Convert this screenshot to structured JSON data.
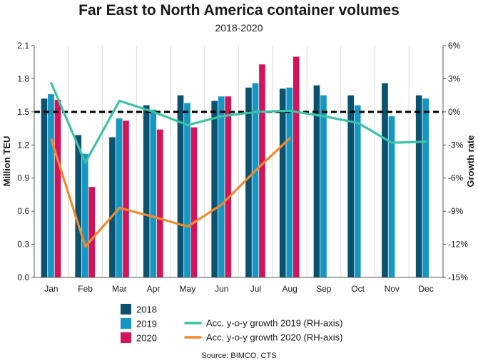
{
  "chart_data": {
    "type": "bar",
    "title": "Far East to North America container volumes",
    "subtitle": "2018-2020",
    "source": "Source: BIMCO, CTS",
    "categories": [
      "Jan",
      "Feb",
      "Mar",
      "Apr",
      "May",
      "Jun",
      "Jul",
      "Aug",
      "Sep",
      "Oct",
      "Nov",
      "Dec"
    ],
    "ylabel": "Million TEU",
    "y2label": "Growth rate",
    "ylim": [
      0,
      2.1
    ],
    "yticks": [
      "0.0",
      "0.3",
      "0.6",
      "0.9",
      "1.2",
      "1.5",
      "1.8",
      "2.1"
    ],
    "y2lim": [
      -15,
      6
    ],
    "y2ticks": [
      "-15%",
      "-12%",
      "-9%",
      "-6%",
      "-3%",
      "0%",
      "3%",
      "6%"
    ],
    "reference_line": {
      "axis": "y2",
      "value": 0,
      "style": "dashed"
    },
    "grid": "vertical",
    "legend_placement": "bottom",
    "series": [
      {
        "name": "2018",
        "kind": "bar",
        "color": "#0b5270",
        "values": [
          1.62,
          1.29,
          1.27,
          1.56,
          1.65,
          1.6,
          1.72,
          1.71,
          1.74,
          1.65,
          1.76,
          1.65
        ]
      },
      {
        "name": "2019",
        "kind": "bar",
        "color": "#1597c4",
        "values": [
          1.66,
          1.12,
          1.44,
          1.52,
          1.58,
          1.64,
          1.76,
          1.72,
          1.65,
          1.56,
          1.46,
          1.62
        ]
      },
      {
        "name": "2020",
        "kind": "bar",
        "color": "#d4145a",
        "values": [
          1.61,
          0.82,
          1.42,
          1.34,
          1.36,
          1.64,
          1.93,
          2.0,
          null,
          null,
          null,
          null
        ]
      },
      {
        "name": "Acc. y-o-y growth 2019 (RH-axis)",
        "kind": "line",
        "axis": "y2",
        "color": "#3cc3a6",
        "values": [
          2.6,
          -4.6,
          1.0,
          0.0,
          -1.2,
          -0.4,
          0.0,
          0.1,
          -0.4,
          -1.0,
          -2.8,
          -2.7
        ]
      },
      {
        "name": "Acc. y-o-y growth 2020 (RH-axis)",
        "kind": "line",
        "axis": "y2",
        "color": "#f08a2c",
        "values": [
          -2.5,
          -12.2,
          -8.7,
          -9.5,
          -10.4,
          -8.4,
          -5.3,
          -2.4,
          null,
          null,
          null,
          null
        ]
      }
    ]
  }
}
